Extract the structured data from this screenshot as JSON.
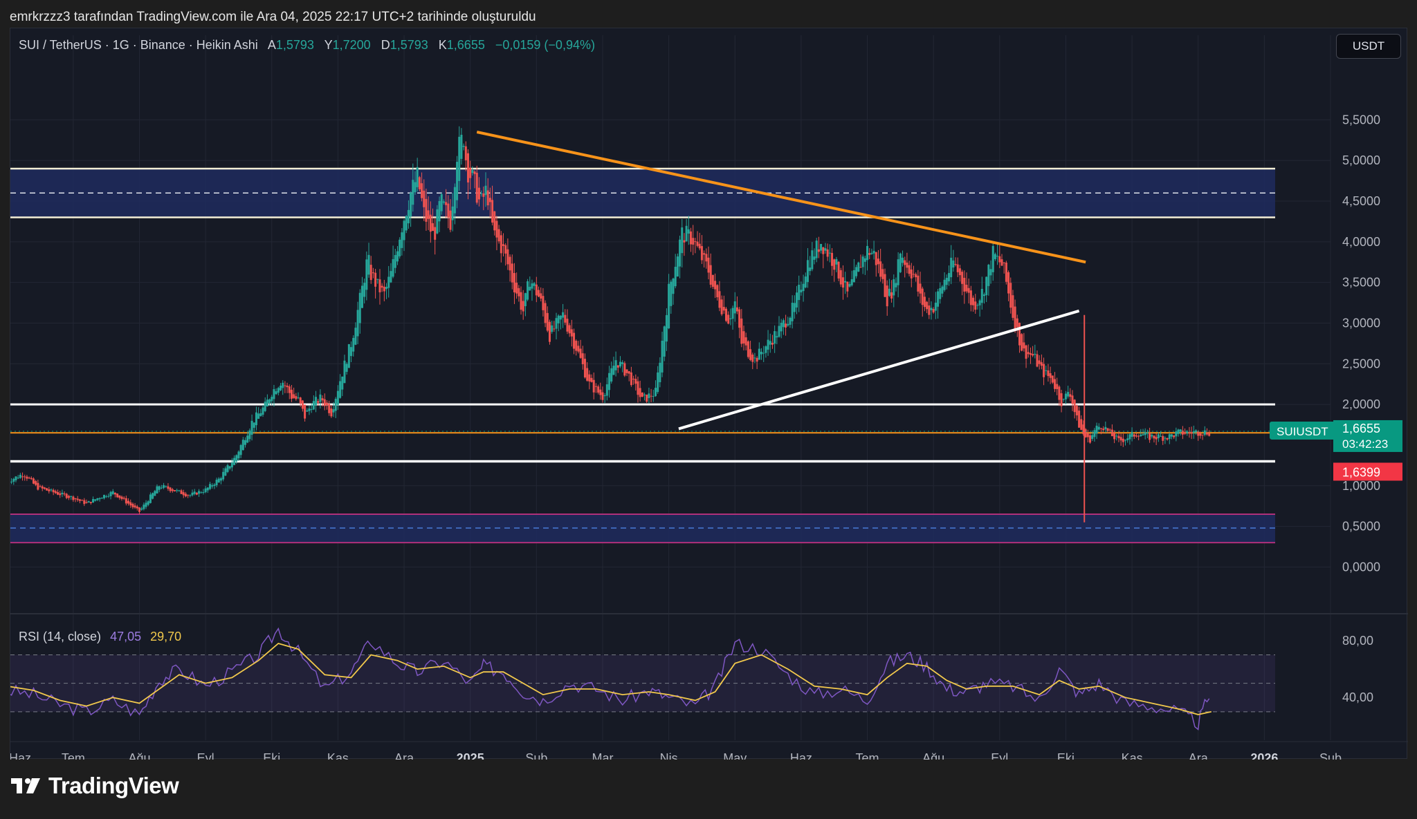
{
  "caption": "emrkrzzz3 tarafından TradingView.com ile Ara 04, 2025 22:17 UTC+2 tarihinde oluşturuldu",
  "legend": {
    "symbol": "SUI / TetherUS · 1G · Binance · Heikin Ashi",
    "open_label": "A",
    "open": "1,5793",
    "high_label": "Y",
    "high": "1,7200",
    "low_label": "D",
    "low": "1,5793",
    "close_label": "K",
    "close": "1,6655",
    "change": "−0,0159 (−0,94%)"
  },
  "currency_button": "USDT",
  "price_tag": {
    "symbol": "SUIUSDT",
    "price": "1,6655",
    "countdown": "03:42:23",
    "low_price": "1,6399"
  },
  "rsi_legend": {
    "label": "RSI (14, close)",
    "rsi": "47,05",
    "ma": "29,70"
  },
  "brand": "TradingView",
  "colors": {
    "up": "#26a69a",
    "down": "#ef5350",
    "trend_orange": "#f7931a",
    "zone_blue": "#1e2c5e",
    "rsi_line": "#7e57c2",
    "rsi_ma": "#f2c94c"
  },
  "chart_data": {
    "type": "line",
    "style": "heikin-ashi candles",
    "y_ticks": [
      "5,5000",
      "5,0000",
      "4,5000",
      "4,0000",
      "3,5000",
      "3,0000",
      "2,5000",
      "2,0000",
      "1,0000",
      "0,5000",
      "0,0000"
    ],
    "y_tick_values": [
      5.5,
      5.0,
      4.5,
      4.0,
      3.5,
      3.0,
      2.5,
      2.0,
      1.0,
      0.5,
      0.0
    ],
    "ylim": [
      -0.6,
      6.2
    ],
    "x_ticks": [
      "Haz",
      "Tem",
      "Ağu",
      "Eyl",
      "Eki",
      "Kas",
      "Ara",
      "2025",
      "Şub",
      "Mar",
      "Nis",
      "May",
      "Haz",
      "Tem",
      "Ağu",
      "Eyl",
      "Eki",
      "Kas",
      "Ara",
      "2026",
      "Şub"
    ],
    "x_tick_months": [
      0,
      1,
      2,
      3,
      4,
      5,
      6,
      7,
      8,
      9,
      10,
      11,
      12,
      13,
      14,
      15,
      16,
      17,
      18,
      19,
      20
    ],
    "xlim": [
      0.05,
      20.0
    ],
    "price_series": {
      "x": [
        0.0,
        0.25,
        0.45,
        0.7,
        1.0,
        1.2,
        1.4,
        1.6,
        1.8,
        2.0,
        2.15,
        2.3,
        2.5,
        2.75,
        3.0,
        3.2,
        3.45,
        3.7,
        3.9,
        4.0,
        4.15,
        4.3,
        4.4,
        4.5,
        4.6,
        4.75,
        4.9,
        5.05,
        5.2,
        5.35,
        5.45,
        5.5,
        5.6,
        5.7,
        5.8,
        5.95,
        6.1,
        6.2,
        6.3,
        6.45,
        6.55,
        6.7,
        6.8,
        6.9,
        6.95,
        7.05,
        7.15,
        7.25,
        7.35,
        7.5,
        7.65,
        7.8,
        7.9,
        8.05,
        8.2,
        8.4,
        8.6,
        8.8,
        9.0,
        9.2,
        9.4,
        9.6,
        9.8,
        10.0,
        10.2,
        10.35,
        10.5,
        10.6,
        10.7,
        10.8,
        10.9,
        11.0,
        11.1,
        11.3,
        11.5,
        11.7,
        11.9,
        12.1,
        12.3,
        12.5,
        12.7,
        12.9,
        13.0,
        13.1,
        13.2,
        13.3,
        13.4,
        13.5,
        13.6,
        13.7,
        13.8,
        13.9,
        14.0,
        14.15,
        14.3,
        14.45,
        14.6,
        14.75,
        14.9,
        15.05,
        15.2,
        15.35,
        15.5,
        15.65,
        15.8,
        15.95,
        16.05,
        16.15,
        16.25,
        16.35,
        16.45,
        16.55,
        16.65,
        16.8,
        16.95,
        17.1,
        17.25,
        17.4,
        17.55,
        17.7,
        17.8,
        17.95,
        18.05,
        18.15,
        18.2
      ],
      "y": [
        1.05,
        1.15,
        0.98,
        0.92,
        0.85,
        0.78,
        0.86,
        0.92,
        0.8,
        0.68,
        0.85,
        1.0,
        0.95,
        0.88,
        0.95,
        1.08,
        1.35,
        1.78,
        1.98,
        2.15,
        2.3,
        2.1,
        2.05,
        1.85,
        2.0,
        2.08,
        1.9,
        2.35,
        2.75,
        3.35,
        3.8,
        3.6,
        3.45,
        3.35,
        3.6,
        4.15,
        4.6,
        4.8,
        4.35,
        4.05,
        4.5,
        4.25,
        5.1,
        5.3,
        4.9,
        4.75,
        4.45,
        4.65,
        4.1,
        3.9,
        3.5,
        3.15,
        3.55,
        3.3,
        2.85,
        3.1,
        2.7,
        2.25,
        2.1,
        2.55,
        2.35,
        2.05,
        2.15,
        3.4,
        4.1,
        4.05,
        3.8,
        3.65,
        3.35,
        3.2,
        3.05,
        3.25,
        2.75,
        2.55,
        2.75,
        2.95,
        3.2,
        3.75,
        4.0,
        3.75,
        3.35,
        3.75,
        3.9,
        3.85,
        3.6,
        3.3,
        3.45,
        3.9,
        3.7,
        3.6,
        3.3,
        3.15,
        3.2,
        3.5,
        3.75,
        3.5,
        3.2,
        3.4,
        3.85,
        3.7,
        3.1,
        2.65,
        2.6,
        2.4,
        2.3,
        2.0,
        2.2,
        1.85,
        1.65,
        1.55,
        1.7,
        1.75,
        1.65,
        1.55,
        1.6,
        1.65,
        1.6,
        1.6,
        1.6,
        1.65,
        1.65,
        1.66,
        1.66,
        1.66,
        1.66
      ]
    },
    "rsi": {
      "ticks": [
        "80,00",
        "40,00"
      ],
      "tick_values": [
        80,
        40
      ],
      "ylim": [
        10,
        95
      ],
      "bands": [
        70,
        50,
        30
      ],
      "x": [
        0.0,
        0.4,
        0.8,
        1.2,
        1.6,
        2.0,
        2.3,
        2.6,
        3.0,
        3.4,
        3.8,
        4.1,
        4.4,
        4.8,
        5.2,
        5.5,
        5.9,
        6.2,
        6.6,
        7.0,
        7.2,
        7.5,
        7.8,
        8.1,
        8.5,
        8.9,
        9.3,
        9.7,
        10.0,
        10.4,
        10.7,
        11.0,
        11.4,
        11.8,
        12.2,
        12.6,
        13.0,
        13.3,
        13.6,
        13.9,
        14.2,
        14.5,
        14.8,
        15.2,
        15.6,
        15.9,
        16.2,
        16.5,
        16.9,
        17.3,
        17.7,
        18.0,
        18.2
      ],
      "values": [
        45,
        42,
        35,
        30,
        38,
        28,
        52,
        60,
        48,
        58,
        70,
        88,
        72,
        46,
        58,
        80,
        64,
        58,
        66,
        50,
        62,
        58,
        44,
        38,
        50,
        46,
        38,
        45,
        40,
        34,
        48,
        78,
        74,
        56,
        42,
        46,
        38,
        64,
        70,
        62,
        46,
        44,
        50,
        48,
        38,
        60,
        42,
        50,
        36,
        34,
        30,
        22,
        46
      ],
      "ma": [
        48,
        45,
        38,
        34,
        40,
        36,
        46,
        56,
        50,
        54,
        66,
        78,
        74,
        56,
        54,
        70,
        66,
        60,
        62,
        54,
        58,
        58,
        50,
        42,
        46,
        46,
        42,
        44,
        42,
        38,
        44,
        64,
        70,
        60,
        48,
        46,
        42,
        54,
        64,
        62,
        52,
        46,
        48,
        48,
        42,
        52,
        46,
        48,
        40,
        36,
        32,
        28,
        30
      ]
    },
    "lines": {
      "resistance_zone": {
        "top": 4.9,
        "bottom": 4.3,
        "mid": 4.6
      },
      "support_zone": {
        "top": 0.65,
        "bottom": 0.3,
        "mid": 0.48
      },
      "white_level": 2.0,
      "orange_level": 1.65,
      "white_support": 1.3,
      "desc_trend": {
        "from": [
          7.1,
          5.35
        ],
        "to": [
          16.3,
          3.75
        ]
      },
      "asc_trend": {
        "from": [
          10.15,
          1.7
        ],
        "to": [
          16.2,
          3.15
        ]
      },
      "wick_spike": {
        "x": 16.28,
        "top": 3.1,
        "low": 0.55
      }
    }
  }
}
